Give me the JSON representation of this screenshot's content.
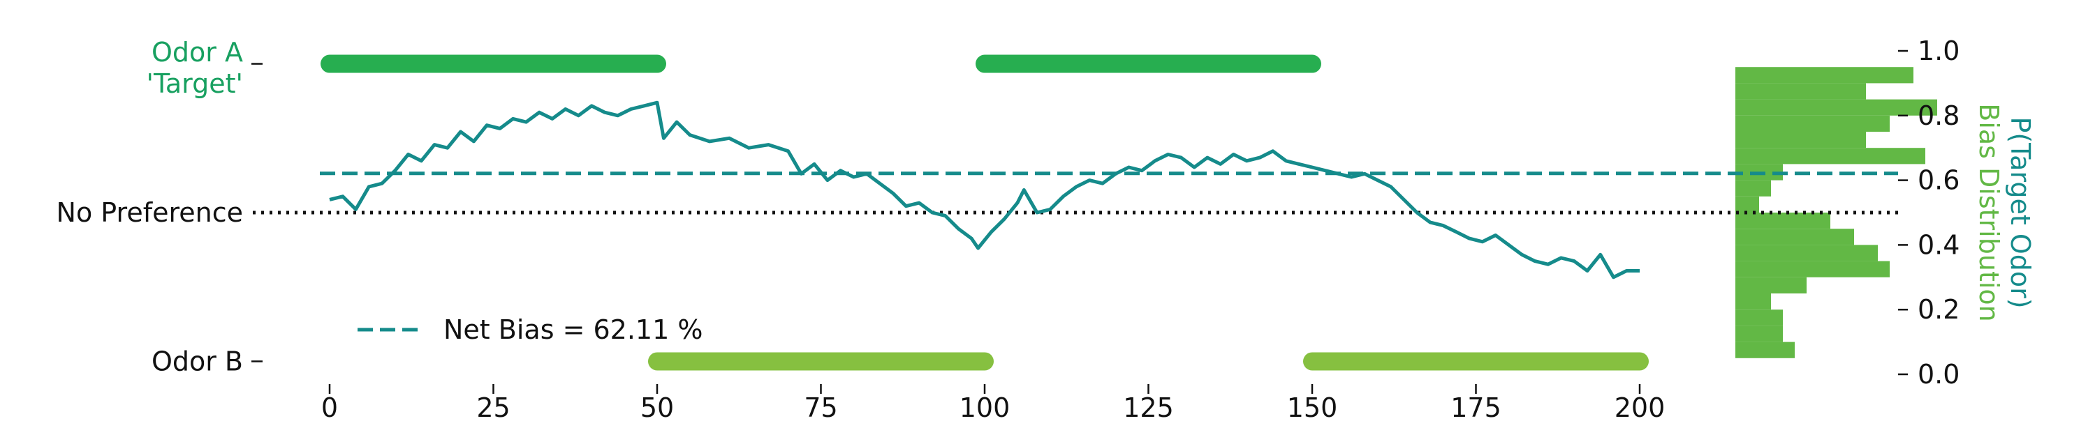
{
  "chart_data": {
    "type": "line",
    "x_ticks": [
      0,
      25,
      50,
      75,
      100,
      125,
      150,
      175,
      200
    ],
    "y_ticks": [
      {
        "value": 0.0,
        "label": "0.0"
      },
      {
        "value": 0.2,
        "label": "0.2"
      },
      {
        "value": 0.4,
        "label": "0.4"
      },
      {
        "value": 0.6,
        "label": "0.6"
      },
      {
        "value": 0.8,
        "label": "0.8"
      },
      {
        "value": 1.0,
        "label": "1.0"
      }
    ],
    "xlim": [
      -5,
      205
    ],
    "ylim": [
      -0.02,
      1.04
    ],
    "left_labels": {
      "odor_a_line1": "Odor A",
      "odor_a_line2": "'Target'",
      "no_preference": "No Preference",
      "odor_b": "Odor B"
    },
    "right_label_line1": "P(Target Odor)",
    "right_label_line2": "Bias Distribution",
    "legend": {
      "label": "Net Bias = 62.11 %",
      "position": "lower-left"
    },
    "net_bias": 0.6211,
    "no_preference_level": 0.5,
    "odor_a_level": 0.96,
    "odor_b_level": 0.04,
    "odor_a_blocks": [
      [
        0,
        50
      ],
      [
        100,
        150
      ]
    ],
    "odor_b_blocks": [
      [
        50,
        100
      ],
      [
        150,
        200
      ]
    ],
    "trace": [
      [
        0,
        0.54
      ],
      [
        2,
        0.55
      ],
      [
        4,
        0.51
      ],
      [
        6,
        0.58
      ],
      [
        8,
        0.59
      ],
      [
        10,
        0.63
      ],
      [
        12,
        0.68
      ],
      [
        14,
        0.66
      ],
      [
        16,
        0.71
      ],
      [
        18,
        0.7
      ],
      [
        20,
        0.75
      ],
      [
        22,
        0.72
      ],
      [
        24,
        0.77
      ],
      [
        26,
        0.76
      ],
      [
        28,
        0.79
      ],
      [
        30,
        0.78
      ],
      [
        32,
        0.81
      ],
      [
        34,
        0.79
      ],
      [
        36,
        0.82
      ],
      [
        38,
        0.8
      ],
      [
        40,
        0.83
      ],
      [
        42,
        0.81
      ],
      [
        44,
        0.8
      ],
      [
        46,
        0.82
      ],
      [
        48,
        0.83
      ],
      [
        50,
        0.84
      ],
      [
        51,
        0.73
      ],
      [
        53,
        0.78
      ],
      [
        55,
        0.74
      ],
      [
        58,
        0.72
      ],
      [
        61,
        0.73
      ],
      [
        64,
        0.7
      ],
      [
        67,
        0.71
      ],
      [
        70,
        0.69
      ],
      [
        72,
        0.62
      ],
      [
        74,
        0.65
      ],
      [
        76,
        0.6
      ],
      [
        78,
        0.63
      ],
      [
        80,
        0.61
      ],
      [
        82,
        0.62
      ],
      [
        84,
        0.59
      ],
      [
        86,
        0.56
      ],
      [
        88,
        0.52
      ],
      [
        90,
        0.53
      ],
      [
        92,
        0.5
      ],
      [
        94,
        0.49
      ],
      [
        96,
        0.45
      ],
      [
        98,
        0.42
      ],
      [
        99,
        0.39
      ],
      [
        101,
        0.44
      ],
      [
        103,
        0.48
      ],
      [
        105,
        0.53
      ],
      [
        106,
        0.57
      ],
      [
        108,
        0.5
      ],
      [
        110,
        0.51
      ],
      [
        112,
        0.55
      ],
      [
        114,
        0.58
      ],
      [
        116,
        0.6
      ],
      [
        118,
        0.59
      ],
      [
        120,
        0.62
      ],
      [
        122,
        0.64
      ],
      [
        124,
        0.63
      ],
      [
        126,
        0.66
      ],
      [
        128,
        0.68
      ],
      [
        130,
        0.67
      ],
      [
        132,
        0.64
      ],
      [
        134,
        0.67
      ],
      [
        136,
        0.65
      ],
      [
        138,
        0.68
      ],
      [
        140,
        0.66
      ],
      [
        142,
        0.67
      ],
      [
        144,
        0.69
      ],
      [
        146,
        0.66
      ],
      [
        148,
        0.65
      ],
      [
        150,
        0.64
      ],
      [
        152,
        0.63
      ],
      [
        154,
        0.62
      ],
      [
        156,
        0.61
      ],
      [
        158,
        0.62
      ],
      [
        160,
        0.6
      ],
      [
        162,
        0.58
      ],
      [
        164,
        0.54
      ],
      [
        166,
        0.5
      ],
      [
        168,
        0.47
      ],
      [
        170,
        0.46
      ],
      [
        172,
        0.44
      ],
      [
        174,
        0.42
      ],
      [
        176,
        0.41
      ],
      [
        178,
        0.43
      ],
      [
        180,
        0.4
      ],
      [
        182,
        0.37
      ],
      [
        184,
        0.35
      ],
      [
        186,
        0.34
      ],
      [
        188,
        0.36
      ],
      [
        190,
        0.35
      ],
      [
        192,
        0.32
      ],
      [
        194,
        0.37
      ],
      [
        196,
        0.3
      ],
      [
        198,
        0.32
      ],
      [
        200,
        0.32
      ]
    ],
    "histogram": {
      "bin_edges": [
        0.05,
        0.1,
        0.15,
        0.2,
        0.25,
        0.3,
        0.35,
        0.4,
        0.45,
        0.5,
        0.55,
        0.6,
        0.65,
        0.7,
        0.75,
        0.8,
        0.85,
        0.9,
        0.95
      ],
      "counts": [
        5,
        4,
        4,
        3,
        6,
        13,
        12,
        10,
        8,
        2,
        3,
        4,
        16,
        11,
        13,
        17,
        11,
        15
      ]
    },
    "colors": {
      "trace": "#158b8b",
      "net_bias_line": "#158b8b",
      "odor_a": "#27ae50",
      "odor_b": "#86c040",
      "histogram": "#62b845",
      "odor_a_text": "#18a060",
      "right_label_1": "#158b8b",
      "right_label_2": "#62b845"
    }
  }
}
